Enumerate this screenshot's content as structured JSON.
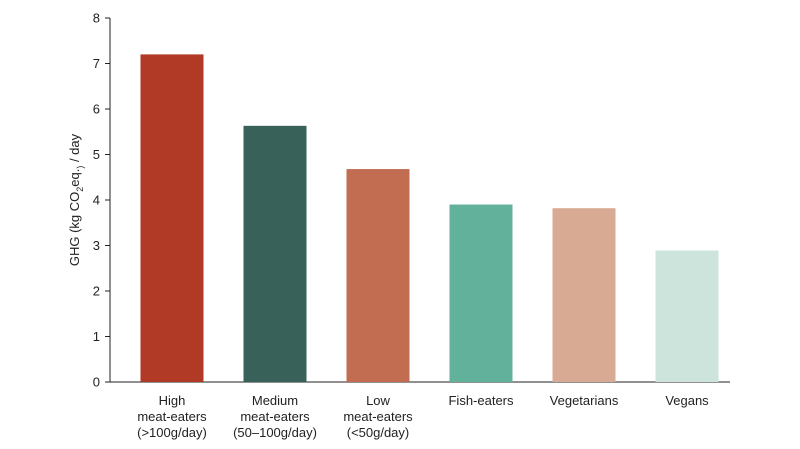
{
  "chart_data": {
    "type": "bar",
    "categories": [
      [
        "High",
        "meat-eaters",
        "(>100g/day)"
      ],
      [
        "Medium",
        "meat-eaters",
        "(50–100g/day)"
      ],
      [
        "Low",
        "meat-eaters",
        "(<50g/day)"
      ],
      [
        "Fish-eaters"
      ],
      [
        "Vegetarians"
      ],
      [
        "Vegans"
      ]
    ],
    "values": [
      7.2,
      5.63,
      4.68,
      3.9,
      3.82,
      2.89
    ],
    "colors": [
      "#b13a26",
      "#376159",
      "#c26d52",
      "#62b19b",
      "#d8aa94",
      "#cde4dc"
    ],
    "ylabel": {
      "pre": "GHG (kg CO",
      "sub": "2",
      "mid": "eq.",
      "sub2": ")",
      "post": " / day"
    },
    "ylim": [
      0,
      8
    ],
    "yticks": [
      0,
      1,
      2,
      3,
      4,
      5,
      6,
      7,
      8
    ],
    "grid": false
  }
}
